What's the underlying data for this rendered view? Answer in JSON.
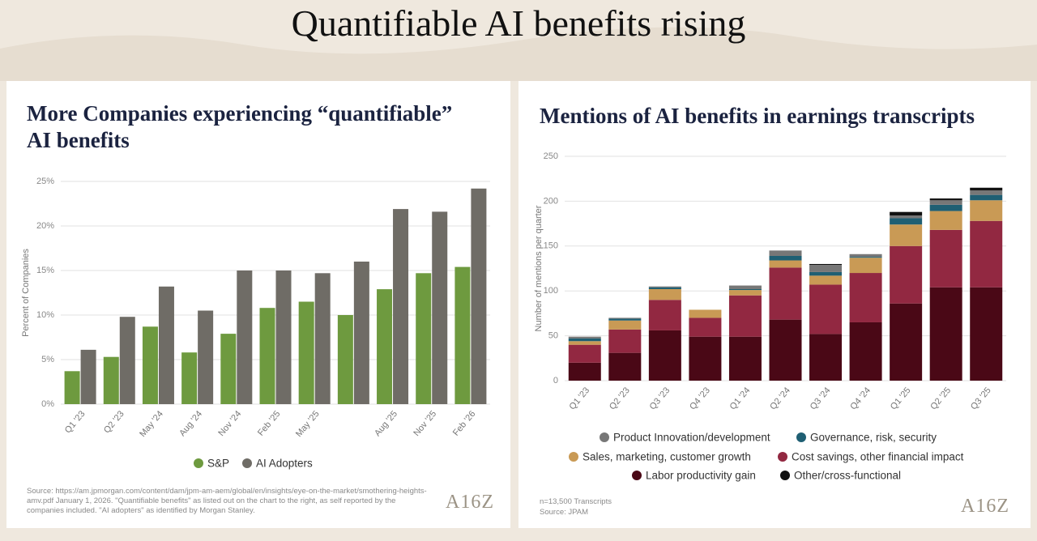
{
  "title": "Quantifiable AI benefits rising",
  "chart_data": [
    {
      "type": "grouped_bar",
      "title": "More Companies experiencing “quantifiable” AI benefits",
      "ylabel": "Percent of Companies",
      "categories": [
        "Q1 '23",
        "Q2 '23",
        "May '24",
        "Aug '24",
        "Nov '24",
        "Feb '25",
        "May '25",
        null,
        "Aug '25",
        "Nov '25",
        "Feb '26"
      ],
      "series": [
        {
          "name": "S&P",
          "color": "#6e9a3f",
          "values": [
            3.7,
            5.3,
            8.7,
            5.8,
            7.9,
            10.8,
            11.5,
            10.0,
            12.9,
            14.7,
            15.4
          ]
        },
        {
          "name": "AI Adopters",
          "color": "#6f6c66",
          "values": [
            6.1,
            9.8,
            13.2,
            10.5,
            15.0,
            15.0,
            14.7,
            16.0,
            21.9,
            21.6,
            24.2
          ]
        }
      ],
      "ylim": [
        0,
        25
      ],
      "yticks": [
        {
          "value": 0,
          "label": "0%"
        },
        {
          "value": 5,
          "label": "5%"
        },
        {
          "value": 10,
          "label": "10%"
        },
        {
          "value": 15,
          "label": "15%"
        },
        {
          "value": 20,
          "label": "20%"
        },
        {
          "value": 25,
          "label": "25%"
        }
      ],
      "grid": true,
      "legend": "bottom",
      "source": "Source: https://am.jpmorgan.com/content/dam/jpm-am-aem/global/en/insights/eye-on-the-market/smothering-heights-amv.pdf January 1, 2026. \"Quantifiable benefits\" as listed out on the chart to the right, as self reported by the companies included. \"AI adopters\" as identified by Morgan Stanley.",
      "logo": "A16Z"
    },
    {
      "type": "stacked_bar",
      "title": "Mentions of AI benefits in earnings transcripts",
      "ylabel": "Number of mentions per quarter",
      "categories": [
        "Q1 '23",
        "Q2 '23",
        "Q3 '23",
        "Q4 '23",
        "Q1 '24",
        "Q2 '24",
        "Q3 '24",
        "Q4 '24",
        "Q1 '25",
        "Q2 '25",
        "Q3 '25"
      ],
      "series": [
        {
          "name": "Labor productivity gain",
          "color": "#4a0816",
          "values": [
            20,
            31,
            56,
            49,
            49,
            68,
            52,
            65,
            86,
            104,
            104
          ]
        },
        {
          "name": "Cost savings, other financial impact",
          "color": "#922841",
          "values": [
            20,
            26,
            34,
            21,
            46,
            58,
            55,
            55,
            64,
            64,
            74
          ]
        },
        {
          "name": "Sales, marketing, customer growth",
          "color": "#c99a55",
          "values": [
            4,
            10,
            12,
            9,
            6,
            8,
            10,
            17,
            24,
            21,
            23
          ]
        },
        {
          "name": "Governance, risk, security",
          "color": "#1f5f73",
          "values": [
            3,
            2,
            2,
            0,
            1,
            5,
            4,
            1,
            7,
            7,
            6
          ]
        },
        {
          "name": "Product Innovation/development",
          "color": "#777777",
          "values": [
            2,
            1,
            1,
            0,
            4,
            6,
            8,
            3,
            3,
            5,
            5
          ]
        },
        {
          "name": "Other/cross-functional",
          "color": "#111111",
          "values": [
            0,
            0,
            0,
            0,
            0,
            0,
            1,
            0,
            4,
            2,
            3
          ]
        }
      ],
      "ylim": [
        0,
        250
      ],
      "yticks": [
        0,
        50,
        100,
        150,
        200,
        250
      ],
      "grid": true,
      "legend": "bottom",
      "note": "n=13,500 Transcripts",
      "source": "Source: JPAM",
      "logo": "A16Z"
    }
  ]
}
